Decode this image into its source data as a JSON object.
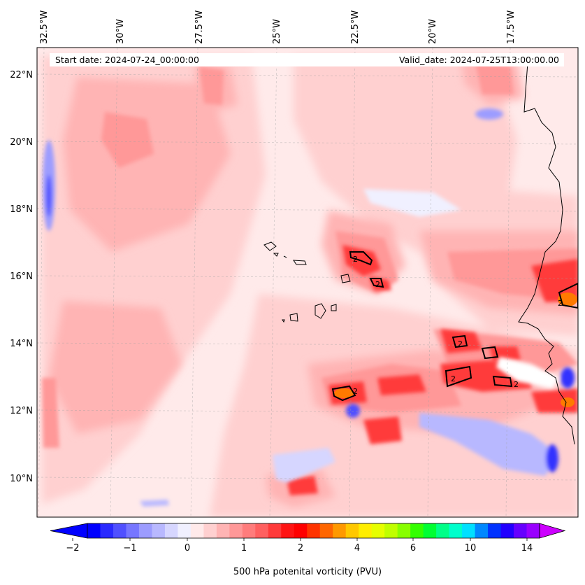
{
  "header": {
    "start_date": "Start date: 2024-07-24_00:00:00",
    "valid_date": "Valid_date: 2024-07-25T13:00:00.00"
  },
  "map": {
    "lon_ticks": [
      "32.5°W",
      "30°W",
      "27.5°W",
      "25°W",
      "22.5°W",
      "20°W",
      "17.5°W"
    ],
    "lat_ticks": [
      "22°N",
      "20°N",
      "18°N",
      "16°N",
      "14°N",
      "12°N",
      "10°N"
    ],
    "lon_range": [
      -33.0,
      -16.0
    ],
    "lat_range": [
      8.9,
      22.8
    ],
    "contour_label": "2"
  },
  "colorbar": {
    "label": "500 hPa potenital vorticity (PVU)",
    "tick_labels": [
      "-2",
      "-1",
      "0",
      "1",
      "2",
      "4",
      "6",
      "10",
      "14"
    ],
    "colors": [
      "#0000ff",
      "#2a2aff",
      "#5050ff",
      "#7676ff",
      "#9c9cff",
      "#b8b8ff",
      "#d6d6ff",
      "#f0f0ff",
      "#ffeaea",
      "#ffd0d0",
      "#ffb4b4",
      "#ff9898",
      "#ff7c7c",
      "#ff6060",
      "#ff3a3a",
      "#ff1414",
      "#ff0000",
      "#ff3300",
      "#ff6600",
      "#ff9900",
      "#ffc800",
      "#ffee00",
      "#e6ff00",
      "#c0ff00",
      "#88ff00",
      "#33ff00",
      "#00ff33",
      "#00ff88",
      "#00ffcc",
      "#00e0ff",
      "#0088ff",
      "#0033ff",
      "#2200ff",
      "#6600ff",
      "#9900ff"
    ],
    "under_color": "#0000ff",
    "over_color": "#cc00ff"
  }
}
